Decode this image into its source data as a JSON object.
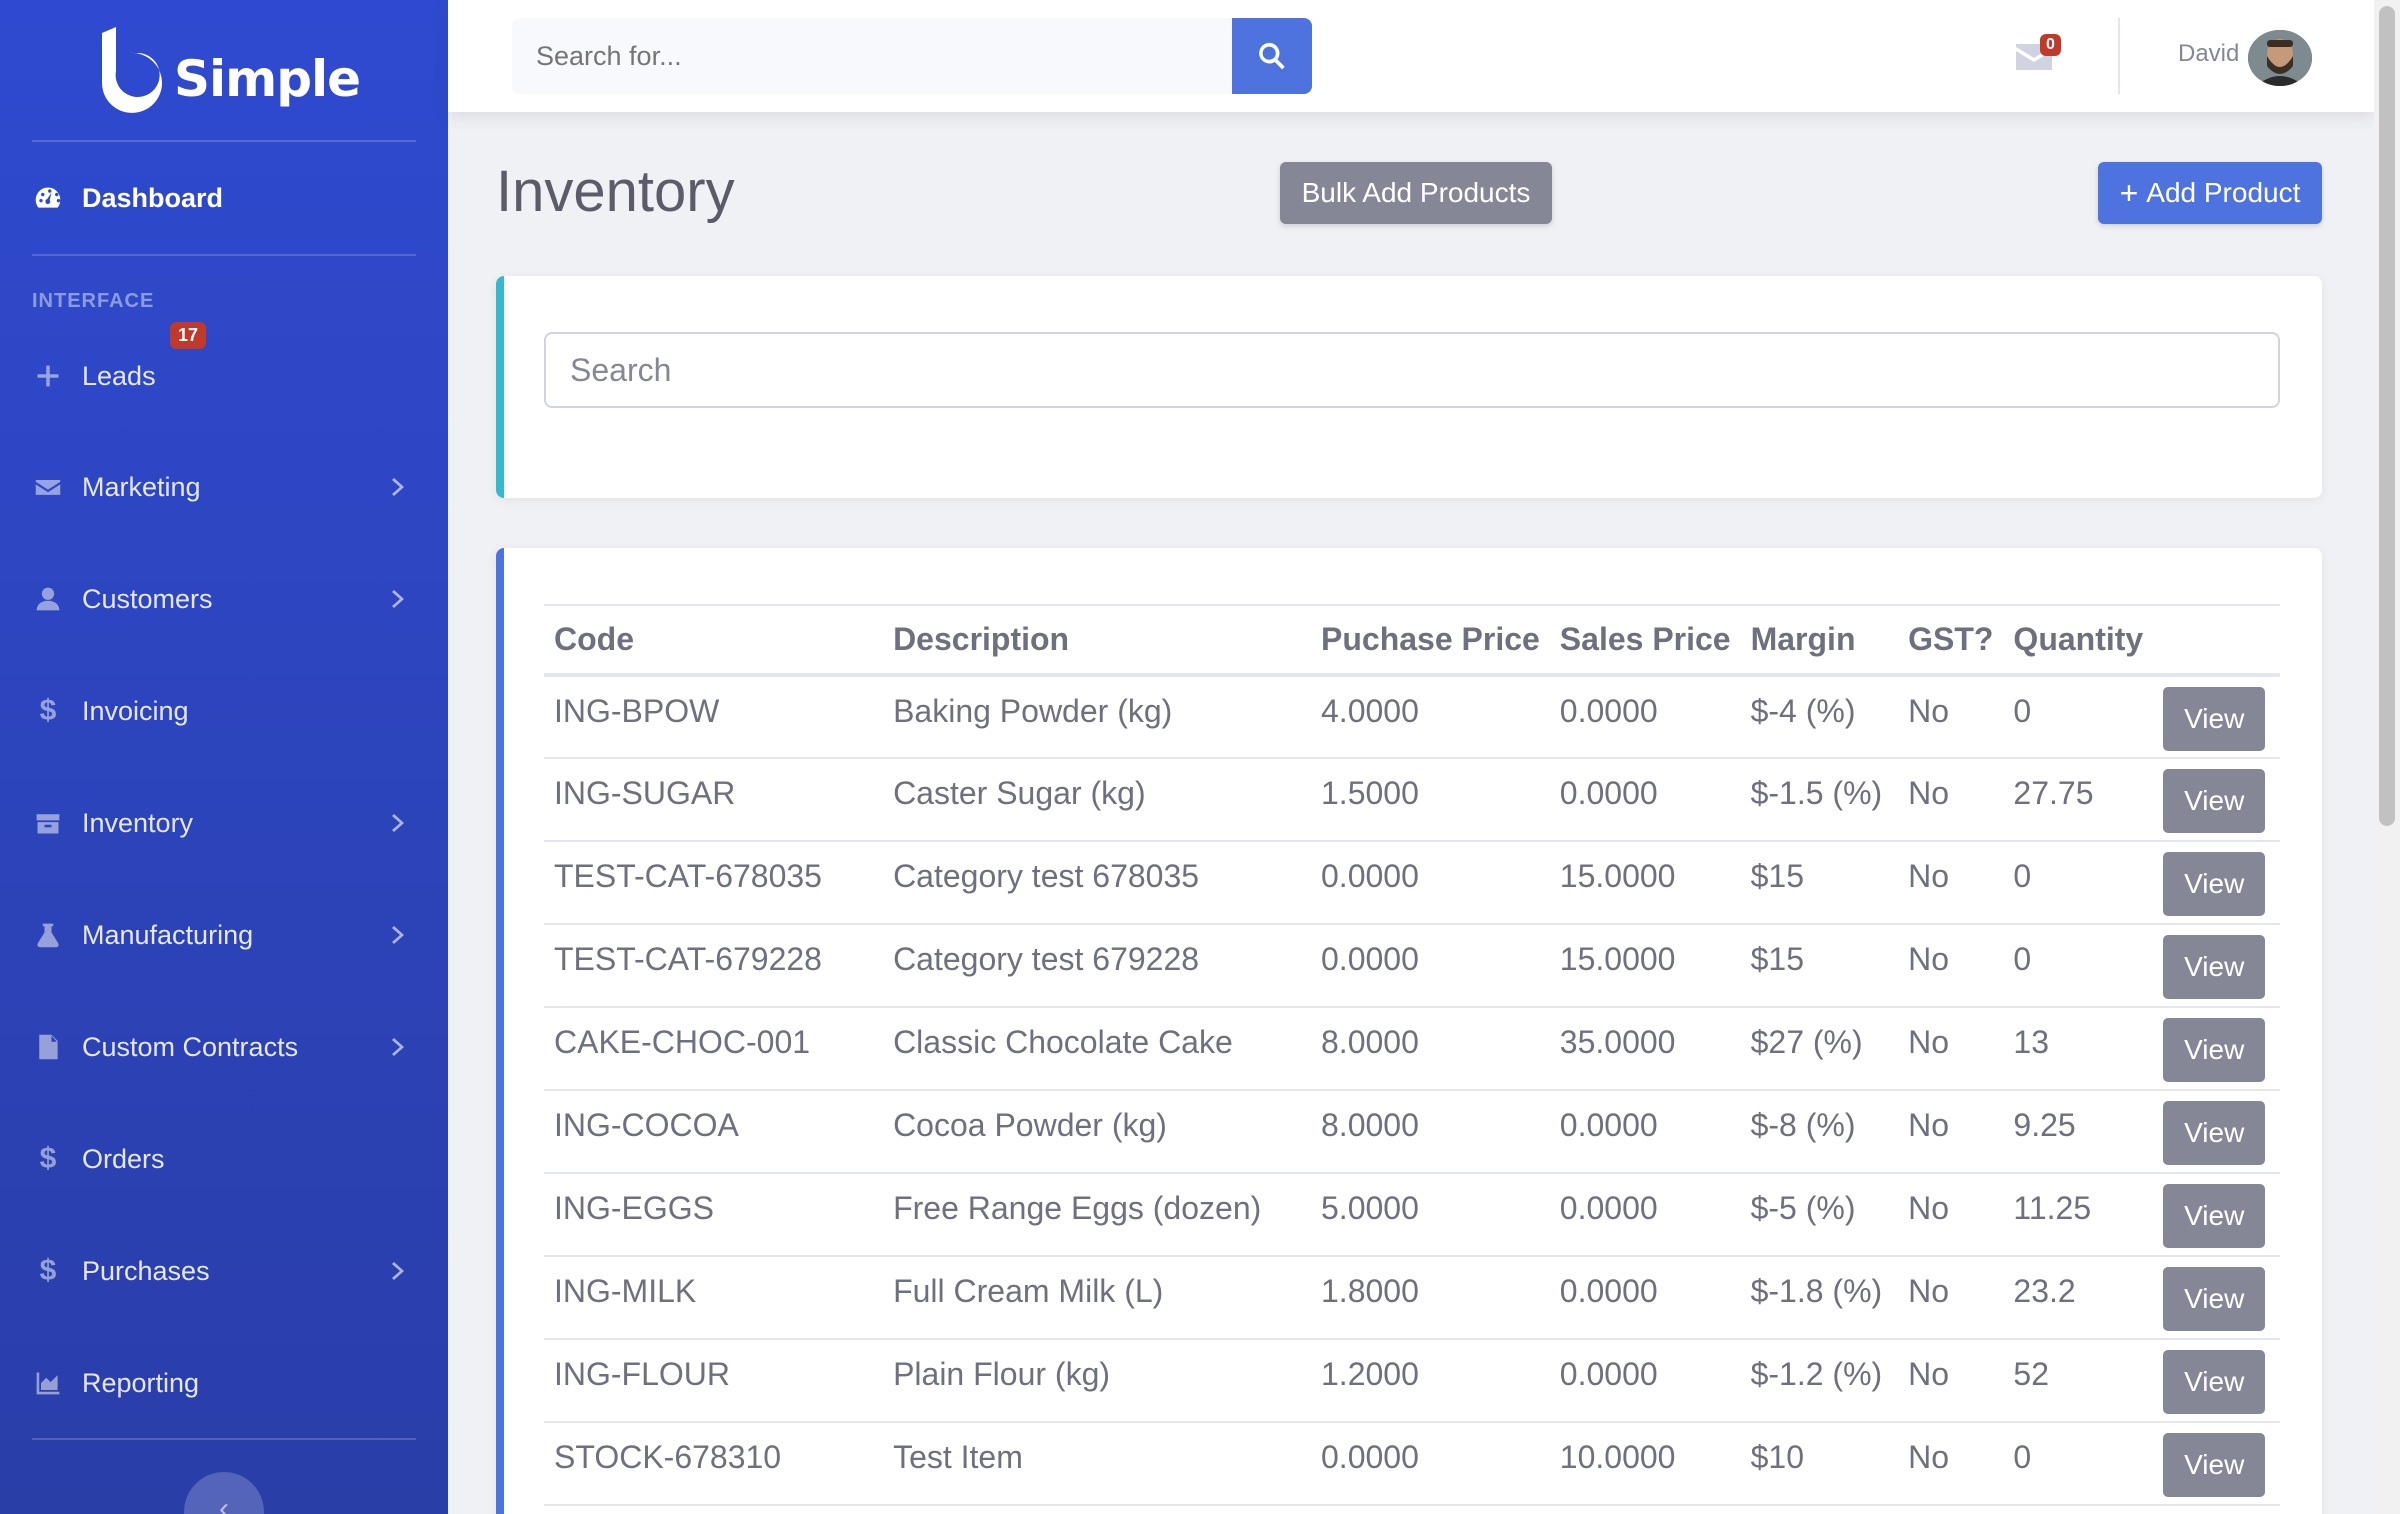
{
  "brand": {
    "name": "Simple"
  },
  "sidebar": {
    "dashboard": {
      "label": "Dashboard",
      "icon": "tachometer-icon"
    },
    "heading": "INTERFACE",
    "leads": {
      "label": "Leads",
      "badge": "17",
      "icon": "plus-icon"
    },
    "items": [
      {
        "label": "Marketing",
        "icon": "envelope-icon",
        "expandable": true
      },
      {
        "label": "Customers",
        "icon": "user-icon",
        "expandable": true
      },
      {
        "label": "Invoicing",
        "icon": "dollar-icon",
        "expandable": false
      },
      {
        "label": "Inventory",
        "icon": "box-icon",
        "expandable": true
      },
      {
        "label": "Manufacturing",
        "icon": "flask-icon",
        "expandable": true
      },
      {
        "label": "Custom Contracts",
        "icon": "document-icon",
        "expandable": true
      },
      {
        "label": "Orders",
        "icon": "dollar-icon",
        "expandable": false
      },
      {
        "label": "Purchases",
        "icon": "dollar-icon",
        "expandable": true
      },
      {
        "label": "Reporting",
        "icon": "chart-area-icon",
        "expandable": false
      }
    ]
  },
  "topbar": {
    "search_placeholder": "Search for...",
    "mail_count": "0",
    "user_name": "David"
  },
  "page": {
    "title": "Inventory",
    "bulk_add_label": "Bulk Add Products",
    "add_label": "Add Product",
    "search_placeholder": "Search"
  },
  "table": {
    "headers": [
      "Code",
      "Description",
      "Puchase Price",
      "Sales Price",
      "Margin",
      "GST?",
      "Quantity"
    ],
    "view_label": "View",
    "rows": [
      [
        "ING-BPOW",
        "Baking Powder (kg)",
        "4.0000",
        "0.0000",
        "$-4 (%)",
        "No",
        "0"
      ],
      [
        "ING-SUGAR",
        "Caster Sugar (kg)",
        "1.5000",
        "0.0000",
        "$-1.5 (%)",
        "No",
        "27.75"
      ],
      [
        "TEST-CAT-678035",
        "Category test 678035",
        "0.0000",
        "15.0000",
        "$15",
        "No",
        "0"
      ],
      [
        "TEST-CAT-679228",
        "Category test 679228",
        "0.0000",
        "15.0000",
        "$15",
        "No",
        "0"
      ],
      [
        "CAKE-CHOC-001",
        "Classic Chocolate Cake",
        "8.0000",
        "35.0000",
        "$27 (%)",
        "No",
        "13"
      ],
      [
        "ING-COCOA",
        "Cocoa Powder (kg)",
        "8.0000",
        "0.0000",
        "$-8 (%)",
        "No",
        "9.25"
      ],
      [
        "ING-EGGS",
        "Free Range Eggs (dozen)",
        "5.0000",
        "0.0000",
        "$-5 (%)",
        "No",
        "11.25"
      ],
      [
        "ING-MILK",
        "Full Cream Milk (L)",
        "1.8000",
        "0.0000",
        "$-1.8 (%)",
        "No",
        "23.2"
      ],
      [
        "ING-FLOUR",
        "Plain Flour (kg)",
        "1.2000",
        "0.0000",
        "$-1.2 (%)",
        "No",
        "52"
      ],
      [
        "STOCK-678310",
        "Test Item",
        "0.0000",
        "10.0000",
        "$10",
        "No",
        "0"
      ]
    ]
  }
}
